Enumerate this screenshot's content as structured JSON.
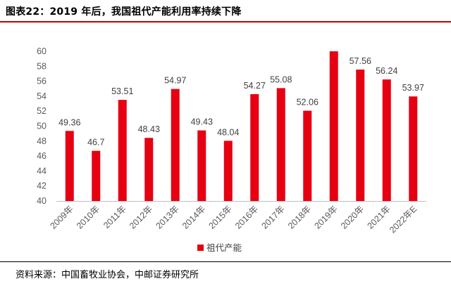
{
  "figure": {
    "title": "图表22：2019 年后，我国祖代产能利用率持续下降",
    "source": "资料来源：中国畜牧业协会，中邮证券研究所"
  },
  "chart_data": {
    "type": "bar",
    "categories": [
      "2009年",
      "2010年",
      "2011年",
      "2012年",
      "2013年",
      "2014年",
      "2015年",
      "2016年",
      "2017年",
      "2018年",
      "2019年",
      "2020年",
      "2021年",
      "2022年E"
    ],
    "series": [
      {
        "name": "祖代产能",
        "values": [
          49.36,
          46.7,
          53.51,
          48.43,
          54.97,
          49.43,
          48.04,
          54.27,
          55.08,
          52.06,
          60,
          57.56,
          56.24,
          53.97
        ]
      }
    ],
    "data_labels": [
      "49.36",
      "46.7",
      "53.51",
      "48.43",
      "54.97",
      "49.43",
      "48.04",
      "54.27",
      "55.08",
      "52.06",
      "",
      "57.56",
      "56.24",
      "53.97"
    ],
    "ylim": [
      40,
      60
    ],
    "yticks": [
      40,
      42,
      44,
      46,
      48,
      50,
      52,
      54,
      56,
      58,
      60
    ],
    "grid": false,
    "legend_position": "bottom",
    "bar_color": "#e60012"
  }
}
